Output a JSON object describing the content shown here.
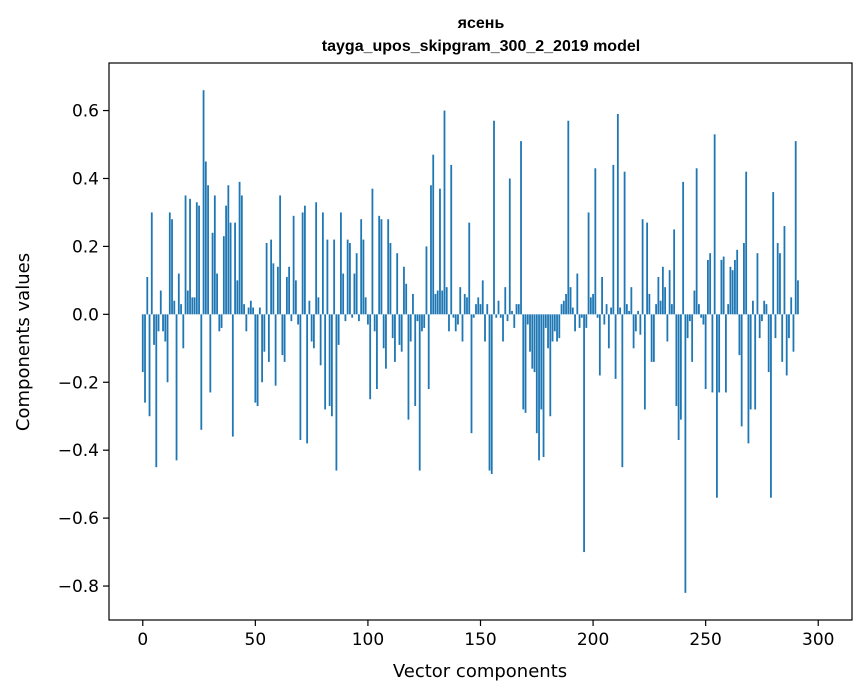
{
  "chart_data": {
    "type": "bar",
    "title": "ясень",
    "subtitle": "tayga_upos_skipgram_300_2_2019 model",
    "xlabel": "Vector components",
    "ylabel": "Components values",
    "xlim": [
      -15,
      315
    ],
    "ylim": [
      -0.9,
      0.74
    ],
    "xticks": [
      0,
      50,
      100,
      150,
      200,
      250,
      300
    ],
    "xtick_labels": [
      "0",
      "50",
      "100",
      "150",
      "200",
      "250",
      "300"
    ],
    "yticks": [
      -0.8,
      -0.6,
      -0.4,
      -0.2,
      0.0,
      0.2,
      0.4,
      0.6
    ],
    "ytick_labels": [
      "−0.8",
      "−0.6",
      "−0.4",
      "−0.2",
      "0.0",
      "0.2",
      "0.4",
      "0.6"
    ],
    "bar_color": "#1f77b4",
    "values": [
      -0.17,
      -0.26,
      0.11,
      -0.3,
      0.3,
      -0.09,
      -0.45,
      -0.05,
      0.07,
      -0.05,
      -0.08,
      -0.2,
      0.3,
      0.28,
      0.04,
      -0.43,
      0.12,
      0.03,
      -0.1,
      0.35,
      0.07,
      0.34,
      0.05,
      0.05,
      0.33,
      0.32,
      -0.34,
      0.66,
      0.45,
      0.38,
      -0.23,
      0.24,
      0.35,
      0.12,
      -0.05,
      -0.04,
      0.23,
      0.32,
      0.38,
      0.27,
      -0.36,
      0.27,
      0.1,
      0.39,
      0.35,
      0.03,
      -0.05,
      0.02,
      0.04,
      0.02,
      -0.26,
      -0.27,
      0.02,
      -0.2,
      -0.11,
      0.21,
      -0.14,
      0.22,
      0.15,
      -0.21,
      0.14,
      0.35,
      -0.12,
      -0.14,
      0.11,
      0.14,
      -0.02,
      0.29,
      0.1,
      -0.03,
      -0.37,
      0.3,
      0.32,
      -0.38,
      0.04,
      -0.08,
      -0.1,
      0.33,
      0.05,
      -0.15,
      0.3,
      -0.28,
      0.22,
      -0.27,
      -0.3,
      0.22,
      -0.46,
      -0.09,
      0.3,
      0.12,
      -0.02,
      0.22,
      0.21,
      -0.01,
      0.12,
      0.18,
      -0.02,
      0.28,
      0.22,
      0.05,
      -0.03,
      -0.25,
      0.37,
      -0.05,
      -0.22,
      0.29,
      0.28,
      -0.1,
      -0.16,
      0.28,
      0.21,
      -0.07,
      -0.14,
      0.18,
      -0.09,
      -0.11,
      0.14,
      0.09,
      -0.31,
      -0.08,
      0.06,
      -0.27,
      -0.02,
      -0.46,
      -0.05,
      -0.04,
      0.2,
      -0.22,
      0.38,
      0.47,
      0.06,
      0.07,
      0.37,
      0.07,
      0.6,
      0.08,
      -0.05,
      0.44,
      -0.01,
      -0.05,
      -0.03,
      0.08,
      -0.08,
      0.06,
      0.05,
      0.27,
      -0.35,
      -0.01,
      0.03,
      0.05,
      0.03,
      0.1,
      -0.08,
      0.03,
      -0.46,
      -0.47,
      0.57,
      -0.01,
      0.04,
      -0.01,
      -0.08,
      0.08,
      -0.02,
      0.4,
      0.01,
      -0.04,
      0.03,
      0.03,
      0.51,
      -0.28,
      -0.29,
      -0.03,
      -0.11,
      -0.16,
      -0.17,
      -0.35,
      -0.43,
      -0.28,
      -0.42,
      -0.04,
      -0.1,
      -0.3,
      -0.08,
      -0.05,
      -0.08,
      -0.07,
      0.03,
      0.04,
      0.06,
      0.57,
      0.08,
      0.02,
      -0.05,
      0.12,
      -0.04,
      -0.01,
      -0.7,
      -0.04,
      0.3,
      0.05,
      0.06,
      0.43,
      -0.01,
      -0.18,
      0.11,
      -0.03,
      0.03,
      -0.1,
      0.02,
      0.44,
      -0.19,
      0.59,
      0.02,
      -0.45,
      0.42,
      0.03,
      0.01,
      0.08,
      -0.1,
      -0.05,
      0.01,
      -0.06,
      0.28,
      -0.28,
      0.27,
      0.06,
      -0.14,
      -0.14,
      0.03,
      0.11,
      0.04,
      0.14,
      0.08,
      -0.08,
      0.13,
      0.03,
      0.25,
      -0.27,
      -0.37,
      -0.31,
      0.39,
      -0.82,
      -0.07,
      -0.02,
      -0.14,
      0.07,
      0.43,
      0.03,
      -0.01,
      -0.03,
      -0.22,
      0.16,
      0.18,
      -0.23,
      0.53,
      -0.54,
      -0.23,
      0.16,
      0.17,
      -0.23,
      0.03,
      0.14,
      0.13,
      0.16,
      0.19,
      -0.12,
      -0.33,
      0.21,
      0.42,
      -0.38,
      -0.28,
      0.04,
      -0.28,
      0.18,
      -0.07,
      -0.02,
      0.04,
      0.03,
      -0.17,
      -0.54,
      0.36,
      -0.07,
      0.21,
      0.18,
      -0.14,
      0.26,
      -0.18,
      -0.07,
      0.05,
      -0.11,
      0.51,
      0.1
    ]
  }
}
